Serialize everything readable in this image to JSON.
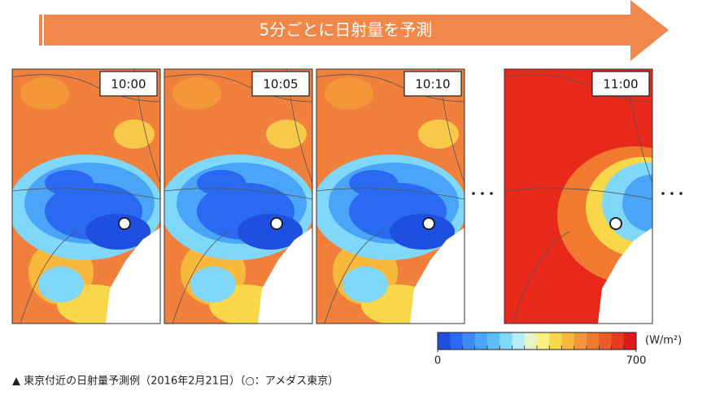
{
  "header": {
    "title": "5分ごとに日射量を予測"
  },
  "panels": [
    {
      "time": "10:00"
    },
    {
      "time": "10:05"
    },
    {
      "time": "10:10"
    },
    {
      "time": "11:00"
    }
  ],
  "colorbar": {
    "unit": "(W/m²)",
    "range": [
      0,
      700
    ],
    "ticks": [
      0,
      700
    ],
    "colors": [
      "#1f4fe0",
      "#2a6af0",
      "#3d8af5",
      "#4aa5f8",
      "#5bbff8",
      "#7fd8fa",
      "#b4ecfa",
      "#e8f4c8",
      "#f8f080",
      "#f8d848",
      "#f8b83c",
      "#f4963a",
      "#f07a30",
      "#ec5a28",
      "#e83a20",
      "#e01818"
    ]
  },
  "caption": "▲ 東京付近の日射量予測例（2016年2月21日）（○：アメダス東京）"
}
